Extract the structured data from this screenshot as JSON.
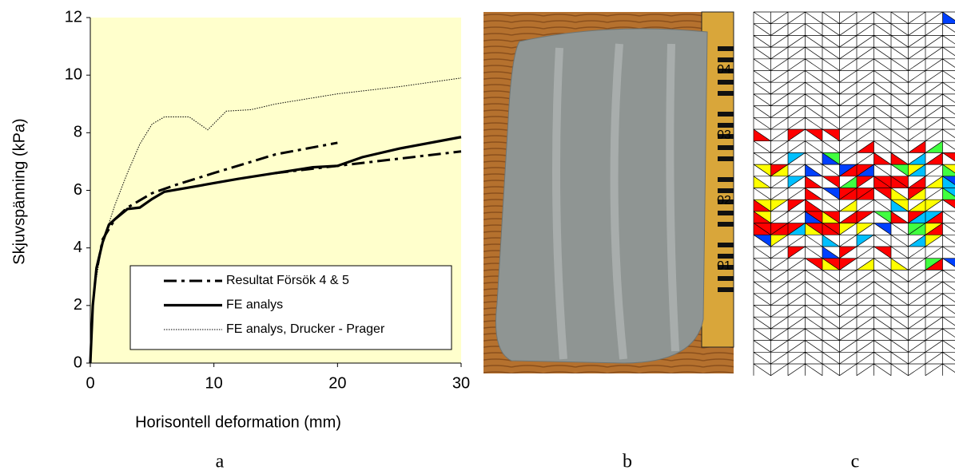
{
  "chart_data": {
    "type": "line",
    "ylabel": "Skjuvspänning (kPa)",
    "xlabel": "Horisontell deformation (mm)",
    "xlim": [
      0,
      30
    ],
    "xticks": [
      0,
      10,
      20,
      30
    ],
    "ylim": [
      0,
      12
    ],
    "yticks": [
      0,
      2,
      4,
      6,
      8,
      10,
      12
    ],
    "background": "#ffffcc",
    "series": [
      {
        "name": "Resultat Försök 4 & 5",
        "color": "#000000",
        "style": "dashdot",
        "x": [
          0.6,
          1,
          2,
          3,
          5,
          7,
          10,
          15,
          20,
          20,
          15,
          20,
          25,
          30
        ],
        "values": [
          3.4,
          4.3,
          5.0,
          5.4,
          5.9,
          6.2,
          6.6,
          7.25,
          7.65,
          null,
          6.6,
          6.85,
          7.1,
          7.35
        ]
      },
      {
        "name": "FE analys",
        "color": "#000000",
        "style": "solid",
        "x": [
          0,
          0.2,
          0.5,
          1,
          1.5,
          2,
          3,
          4,
          5,
          6,
          8,
          10,
          12,
          15,
          18,
          20,
          22,
          25,
          30
        ],
        "values": [
          0,
          2.0,
          3.3,
          4.2,
          4.8,
          5.0,
          5.35,
          5.4,
          5.7,
          5.95,
          6.1,
          6.25,
          6.4,
          6.6,
          6.8,
          6.85,
          7.15,
          7.45,
          7.85
        ]
      },
      {
        "name": "FE analys, Drucker - Prager",
        "color": "#000000",
        "style": "dotted",
        "x": [
          0,
          0.3,
          1,
          2,
          3,
          4,
          5,
          6,
          8,
          9.5,
          11,
          13,
          15,
          20,
          25,
          30
        ],
        "values": [
          0,
          2.5,
          4.2,
          5.5,
          6.6,
          7.6,
          8.3,
          8.55,
          8.55,
          8.1,
          8.75,
          8.8,
          9.0,
          9.35,
          9.6,
          9.9
        ]
      }
    ]
  },
  "panels": {
    "captions": [
      "a",
      "b",
      "c"
    ],
    "ruler_marks": [
      "04",
      "03",
      "02",
      "01"
    ]
  }
}
